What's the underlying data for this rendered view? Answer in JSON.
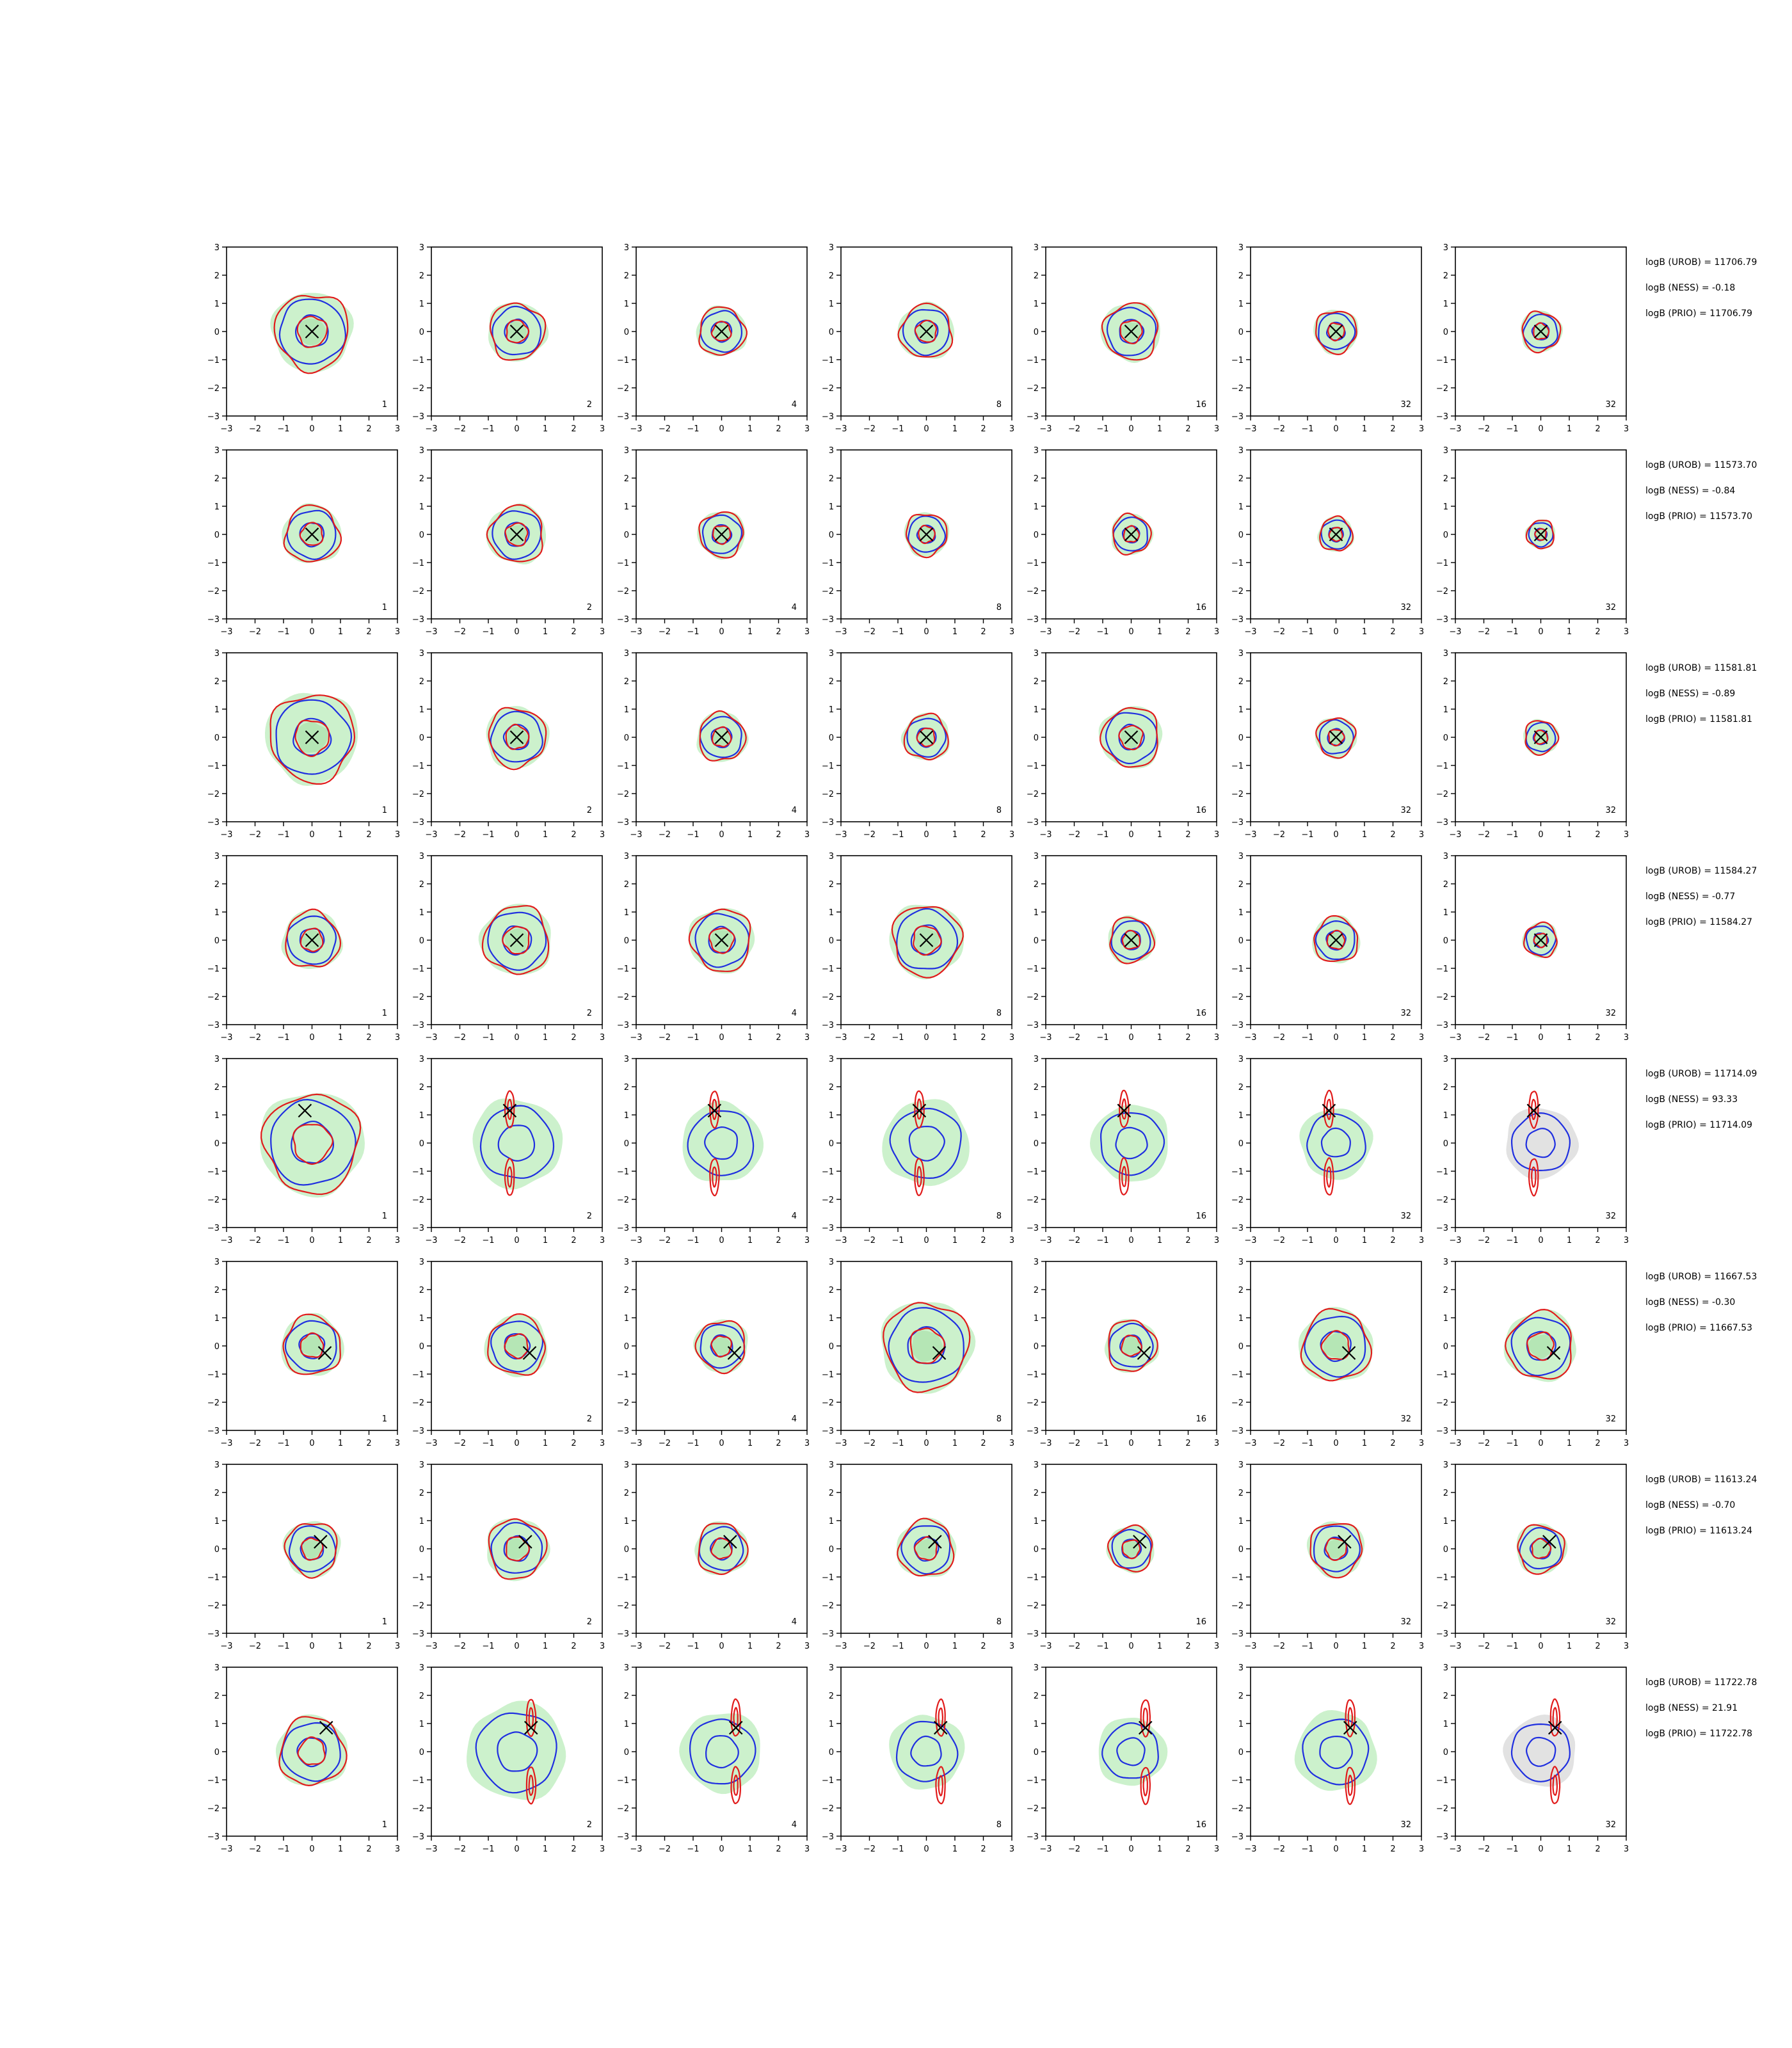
{
  "figure": {
    "rows": 8,
    "cols": 7,
    "panel_numbers": [
      "1",
      "2",
      "4",
      "8",
      "16",
      "32",
      "32"
    ],
    "xticks": [
      "−3",
      "−2",
      "−1",
      "0",
      "1",
      "2",
      "3"
    ],
    "yticks": [
      "3",
      "2",
      "1",
      "0",
      "−1",
      "−2",
      "−3"
    ],
    "colors": {
      "fill_green": "#ccf1cc",
      "fill_gray": "#e2e2e2",
      "contour_red": "#e11b1b",
      "contour_blue": "#1f2fe0",
      "marker": "#000000",
      "axis": "#000000"
    }
  },
  "chart_data": [
    {
      "type": "contour-grid",
      "row": 1,
      "xlim": [
        -3,
        3
      ],
      "ylim": [
        -3,
        3
      ],
      "marker": {
        "x": 0.0,
        "y": 0.0
      },
      "shape": "unimodal",
      "panel_spread": [
        1.35,
        1.0,
        0.85,
        0.95,
        1.0,
        0.75,
        0.7
      ],
      "stats": [
        "logB (UROB) = 11706.79",
        "logB (NESS) = -0.18",
        "logB (PRIO) = 11706.79"
      ]
    },
    {
      "type": "contour-grid",
      "row": 2,
      "xlim": [
        -3,
        3
      ],
      "ylim": [
        -3,
        3
      ],
      "marker": {
        "x": 0.0,
        "y": 0.0
      },
      "shape": "unimodal",
      "panel_spread": [
        1.0,
        1.0,
        0.8,
        0.75,
        0.7,
        0.6,
        0.5
      ],
      "stats": [
        "logB (UROB) = 11573.70",
        "logB (NESS) = -0.84",
        "logB (PRIO) = 11573.70"
      ]
    },
    {
      "type": "contour-grid",
      "row": 3,
      "xlim": [
        -3,
        3
      ],
      "ylim": [
        -3,
        3
      ],
      "marker": {
        "x": 0.0,
        "y": 0.0
      },
      "shape": "unimodal",
      "panel_spread": [
        1.55,
        1.05,
        0.85,
        0.8,
        1.05,
        0.7,
        0.6
      ],
      "stats": [
        "logB (UROB) = 11581.81",
        "logB (NESS) = -0.89",
        "logB (PRIO) = 11581.81"
      ]
    },
    {
      "type": "contour-grid",
      "row": 4,
      "xlim": [
        -3,
        3
      ],
      "ylim": [
        -3,
        3
      ],
      "marker": {
        "x": 0.0,
        "y": 0.0
      },
      "shape": "unimodal",
      "panel_spread": [
        1.0,
        1.2,
        1.1,
        1.25,
        0.8,
        0.8,
        0.6
      ],
      "stats": [
        "logB (UROB) = 11584.27",
        "logB (NESS) = -0.77",
        "logB (PRIO) = 11584.27"
      ]
    },
    {
      "type": "contour-grid",
      "row": 5,
      "xlim": [
        -3,
        3
      ],
      "ylim": [
        -3,
        3
      ],
      "marker": {
        "x": -0.25,
        "y": 1.15
      },
      "shape": "bimodal",
      "panel_spread": [
        1.75,
        1.5,
        1.35,
        1.45,
        1.3,
        1.2,
        1.2
      ],
      "stats": [
        "logB (UROB) = 11714.09",
        "logB (NESS) = 93.33",
        "logB (PRIO) = 11714.09"
      ]
    },
    {
      "type": "contour-grid",
      "row": 6,
      "xlim": [
        -3,
        3
      ],
      "ylim": [
        -3,
        3
      ],
      "marker": {
        "x": 0.45,
        "y": -0.25
      },
      "shape": "unimodal",
      "panel_spread": [
        1.05,
        1.05,
        0.9,
        1.55,
        0.9,
        1.25,
        1.2
      ],
      "stats": [
        "logB (UROB) = 11667.53",
        "logB (NESS) = -0.30",
        "logB (PRIO) = 11667.53"
      ]
    },
    {
      "type": "contour-grid",
      "row": 7,
      "xlim": [
        -3,
        3
      ],
      "ylim": [
        -3,
        3
      ],
      "marker": {
        "x": 0.3,
        "y": 0.25
      },
      "shape": "unimodal",
      "panel_spread": [
        0.95,
        1.05,
        0.9,
        1.0,
        0.8,
        0.95,
        0.85
      ],
      "stats": [
        "logB (UROB) = 11613.24",
        "logB (NESS) = -0.70",
        "logB (PRIO) = 11613.24"
      ]
    },
    {
      "type": "contour-grid",
      "row": 8,
      "xlim": [
        -3,
        3
      ],
      "ylim": [
        -3,
        3
      ],
      "marker": {
        "x": 0.5,
        "y": 0.85
      },
      "shape": "bimodal",
      "panel_spread": [
        1.2,
        1.65,
        1.35,
        1.25,
        1.15,
        1.35,
        1.2
      ],
      "stats": [
        "logB (UROB) = 11722.78",
        "logB (NESS) = 21.91",
        "logB (PRIO) = 11722.78"
      ]
    }
  ]
}
